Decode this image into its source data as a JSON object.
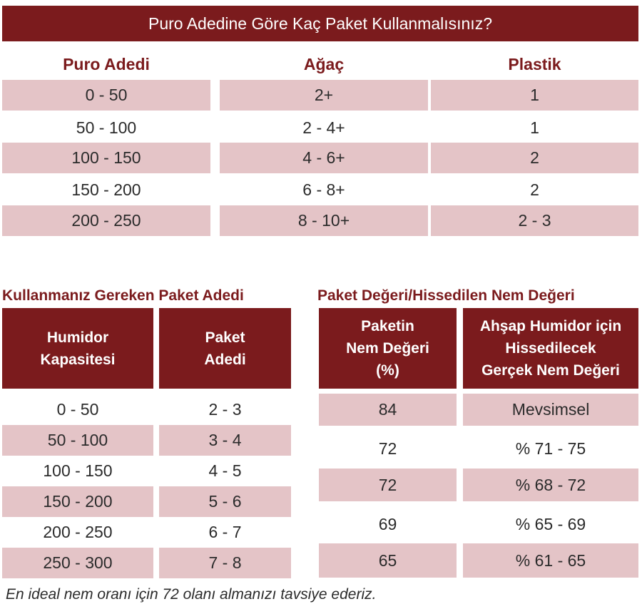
{
  "colors": {
    "accent": "#7b1b1d",
    "row_fill": "#e4c4c7"
  },
  "top_table": {
    "title": "Puro Adedine Göre Kaç Paket Kullanmalısınız?",
    "headers": [
      "Puro Adedi",
      "Ağaç",
      "Plastik"
    ],
    "rows": [
      [
        "0 - 50",
        "2+",
        "1"
      ],
      [
        "50 - 100",
        "2 - 4+",
        "1"
      ],
      [
        "100 - 150",
        "4 - 6+",
        "2"
      ],
      [
        "150 - 200",
        "6 - 8+",
        "2"
      ],
      [
        "200 - 250",
        "8 - 10+",
        "2 - 3"
      ]
    ]
  },
  "left_table": {
    "title": "Kullanmanız Gereken Paket Adedi",
    "headers": [
      "Humidor\nKapasitesi",
      "Paket\nAdedi"
    ],
    "rows": [
      [
        "0 - 50",
        "2 - 3"
      ],
      [
        "50 - 100",
        "3 - 4"
      ],
      [
        "100 - 150",
        "4 - 5"
      ],
      [
        "150 - 200",
        "5 - 6"
      ],
      [
        "200 - 250",
        "6 - 7"
      ],
      [
        "250 - 300",
        "7 - 8"
      ]
    ]
  },
  "right_table": {
    "title": "Paket Değeri/Hissedilen Nem Değeri",
    "headers": [
      "Paketin\nNem Değeri\n(%)",
      "Ahşap Humidor için\nHissedilecek\nGerçek Nem Değeri"
    ],
    "rows": [
      [
        "84",
        "Mevsimsel"
      ],
      [
        "72",
        "% 71 - 75"
      ],
      [
        "72",
        "% 68 - 72"
      ],
      [
        "69",
        "% 65 - 69"
      ],
      [
        "65",
        "% 61 - 65"
      ]
    ]
  },
  "footnote": "En ideal nem oranı için 72 olanı almanızı tavsiye ederiz."
}
